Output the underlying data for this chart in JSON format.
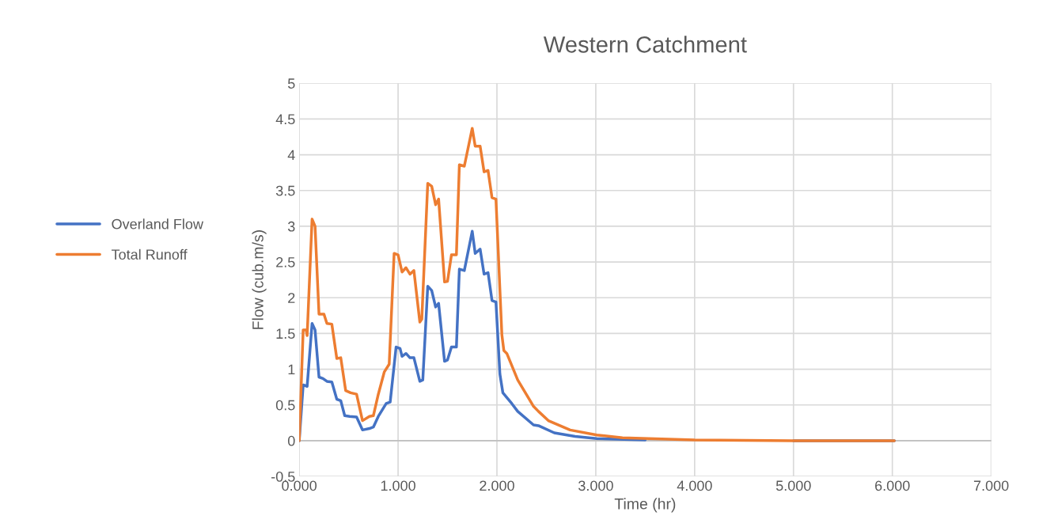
{
  "chart_data": {
    "type": "line",
    "title": "Western Catchment",
    "xlabel": "Time (hr)",
    "ylabel": "Flow (cub.m/s)",
    "xlim": [
      0,
      7
    ],
    "xticks": [
      {
        "value": 0,
        "label": "0.000"
      },
      {
        "value": 1,
        "label": "1.000"
      },
      {
        "value": 2,
        "label": "2.000"
      },
      {
        "value": 3,
        "label": "3.000"
      },
      {
        "value": 4,
        "label": "4.000"
      },
      {
        "value": 5,
        "label": "5.000"
      },
      {
        "value": 6,
        "label": "6.000"
      },
      {
        "value": 7,
        "label": "7.000"
      }
    ],
    "ylim": [
      -0.5,
      5
    ],
    "yticks": [
      -0.5,
      0,
      0.5,
      1,
      1.5,
      2,
      2.5,
      3,
      3.5,
      4,
      4.5,
      5
    ],
    "grid": true,
    "legend": "left",
    "marker": "none",
    "line_style": "solid",
    "series": [
      {
        "name": "Overland Flow",
        "color": "#4472c4",
        "x": [
          0,
          0.04,
          0.08,
          0.13,
          0.16,
          0.2,
          0.24,
          0.28,
          0.33,
          0.38,
          0.42,
          0.46,
          0.51,
          0.58,
          0.64,
          0.71,
          0.75,
          0.8,
          0.88,
          0.92,
          0.98,
          1.02,
          1.04,
          1.08,
          1.12,
          1.16,
          1.22,
          1.25,
          1.3,
          1.34,
          1.38,
          1.41,
          1.47,
          1.5,
          1.54,
          1.59,
          1.62,
          1.67,
          1.75,
          1.78,
          1.83,
          1.87,
          1.91,
          1.95,
          1.99,
          2.03,
          2.06,
          2.15,
          2.21,
          2.37,
          2.42,
          2.58,
          2.79,
          3.01,
          3.5,
          4.0,
          5.0,
          6.02
        ],
        "values": [
          0,
          0.78,
          0.76,
          1.64,
          1.55,
          0.89,
          0.87,
          0.83,
          0.82,
          0.58,
          0.56,
          0.35,
          0.34,
          0.33,
          0.15,
          0.17,
          0.19,
          0.34,
          0.52,
          0.54,
          1.31,
          1.29,
          1.18,
          1.22,
          1.16,
          1.16,
          0.83,
          0.85,
          2.16,
          2.1,
          1.87,
          1.92,
          1.11,
          1.13,
          1.31,
          1.31,
          2.4,
          2.38,
          2.93,
          2.62,
          2.68,
          2.33,
          2.35,
          1.96,
          1.94,
          0.93,
          0.67,
          0.52,
          0.41,
          0.22,
          0.21,
          0.11,
          0.06,
          0.03,
          0.01,
          null,
          0,
          0
        ]
      },
      {
        "name": "Total Runoff",
        "color": "#ed7d31",
        "x": [
          0,
          0.04,
          0.07,
          0.08,
          0.13,
          0.16,
          0.2,
          0.25,
          0.28,
          0.33,
          0.38,
          0.42,
          0.47,
          0.52,
          0.58,
          0.64,
          0.71,
          0.75,
          0.8,
          0.86,
          0.91,
          0.96,
          1.0,
          1.04,
          1.08,
          1.12,
          1.16,
          1.22,
          1.24,
          1.3,
          1.34,
          1.38,
          1.41,
          1.47,
          1.5,
          1.54,
          1.59,
          1.62,
          1.67,
          1.75,
          1.78,
          1.83,
          1.87,
          1.91,
          1.95,
          1.99,
          2.05,
          2.07,
          2.1,
          2.21,
          2.37,
          2.42,
          2.52,
          2.74,
          3.01,
          3.27,
          4.0,
          5.0,
          6.02
        ],
        "values": [
          0,
          1.55,
          1.55,
          1.47,
          3.1,
          3.0,
          1.77,
          1.77,
          1.64,
          1.63,
          1.15,
          1.16,
          0.7,
          0.67,
          0.65,
          0.28,
          0.34,
          0.35,
          0.65,
          0.96,
          1.07,
          2.62,
          2.6,
          2.36,
          2.42,
          2.33,
          2.38,
          1.66,
          1.7,
          3.6,
          3.56,
          3.3,
          3.38,
          2.22,
          2.23,
          2.6,
          2.6,
          3.86,
          3.84,
          4.37,
          4.12,
          4.12,
          3.76,
          3.78,
          3.4,
          3.38,
          1.48,
          1.26,
          1.22,
          0.85,
          0.48,
          0.41,
          0.28,
          0.15,
          0.08,
          0.04,
          0.01,
          0,
          0
        ]
      }
    ]
  }
}
